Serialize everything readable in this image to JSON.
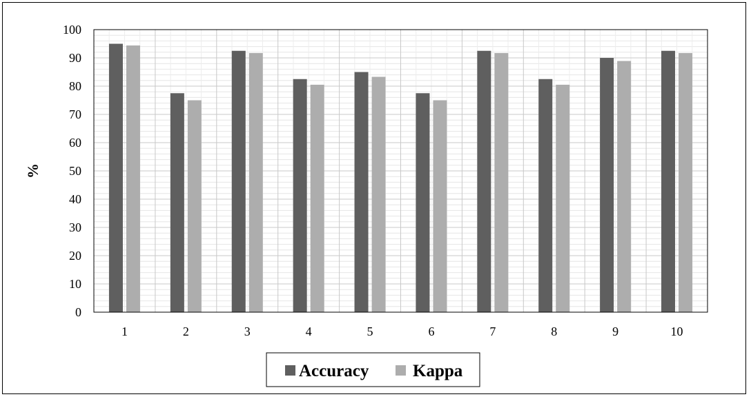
{
  "chart_data": {
    "type": "bar",
    "title": "",
    "xlabel": "",
    "ylabel": "%",
    "ylim": [
      0,
      100
    ],
    "yticks": [
      0,
      10,
      20,
      30,
      40,
      50,
      60,
      70,
      80,
      90,
      100
    ],
    "categories": [
      "1",
      "2",
      "3",
      "4",
      "5",
      "6",
      "7",
      "8",
      "9",
      "10"
    ],
    "series": [
      {
        "name": "Accuracy",
        "color": "#5f5f5f",
        "values": [
          95,
          77.5,
          92.5,
          82.5,
          85,
          77.5,
          92.5,
          82.5,
          90,
          92.5
        ]
      },
      {
        "name": "Kappa",
        "color": "#adadad",
        "values": [
          94.4,
          75,
          91.7,
          80.5,
          83.3,
          75,
          91.7,
          80.5,
          88.9,
          91.7
        ]
      }
    ],
    "grid": true,
    "legend_position": "bottom"
  }
}
